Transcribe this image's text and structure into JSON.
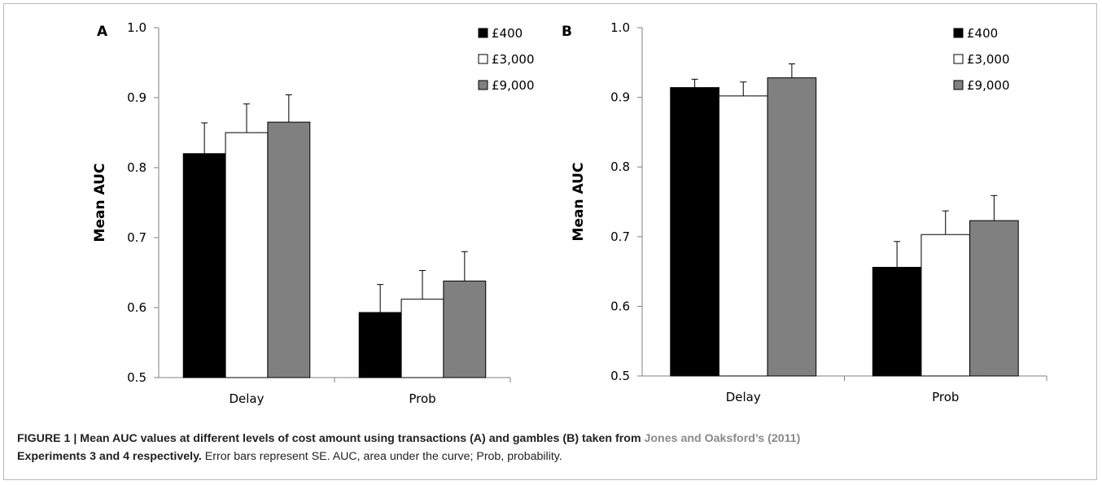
{
  "chart_data": [
    {
      "type": "bar",
      "panel_label": "A",
      "categories": [
        "Delay",
        "Prob"
      ],
      "series": [
        {
          "name": "£400",
          "values": [
            0.82,
            0.593
          ],
          "errors": [
            0.044,
            0.04
          ]
        },
        {
          "name": "£3,000",
          "values": [
            0.85,
            0.612
          ],
          "errors": [
            0.041,
            0.041
          ]
        },
        {
          "name": "£9,000",
          "values": [
            0.865,
            0.638
          ],
          "errors": [
            0.039,
            0.042
          ]
        }
      ],
      "ylabel": "Mean AUC",
      "xlabel": "",
      "ylim": [
        0.5,
        1.0
      ],
      "yticks": [
        "0.5",
        "0.6",
        "0.7",
        "0.8",
        "0.9",
        "1.0"
      ],
      "legend": "top-right",
      "grid": false
    },
    {
      "type": "bar",
      "panel_label": "B",
      "categories": [
        "Delay",
        "Prob"
      ],
      "series": [
        {
          "name": "£400",
          "values": [
            0.914,
            0.656
          ],
          "errors": [
            0.012,
            0.037
          ]
        },
        {
          "name": "£3,000",
          "values": [
            0.902,
            0.703
          ],
          "errors": [
            0.02,
            0.034
          ]
        },
        {
          "name": "£9,000",
          "values": [
            0.928,
            0.723
          ],
          "errors": [
            0.02,
            0.036
          ]
        }
      ],
      "ylabel": "Mean AUC",
      "xlabel": "",
      "ylim": [
        0.5,
        1.0
      ],
      "yticks": [
        "0.5",
        "0.6",
        "0.7",
        "0.8",
        "0.9",
        "1.0"
      ],
      "legend": "top-right",
      "grid": false
    }
  ],
  "series_colors": [
    "#000000",
    "#ffffff",
    "#808080"
  ],
  "caption": {
    "bold_lead": "FIGURE 1 | Mean AUC values at different levels of cost amount using transactions (A) and gambles (B) taken from ",
    "link_text": "Jones and Oaksford’s (2011)",
    "bold_tail": "Experiments 3 and 4 respectively.",
    "rest": " Error bars represent SE. AUC, area under the curve; Prob, probability."
  }
}
